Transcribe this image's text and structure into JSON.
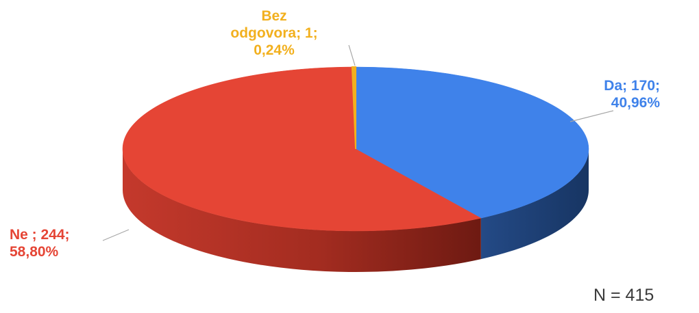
{
  "chart_data": {
    "type": "pie",
    "variant": "3d",
    "slices": [
      {
        "name": "Da",
        "value": 170,
        "percent": "40,96%",
        "color": "#3f82ea",
        "side_color": "#1f3f73",
        "label_lines": [
          "Da; 170;",
          "40,96%"
        ]
      },
      {
        "name": "Ne",
        "value": 244,
        "percent": "58,80%",
        "color": "#e54535",
        "side_color": "#9a2a1f",
        "label_lines": [
          "Ne ; 244;",
          "58,80%"
        ]
      },
      {
        "name": "Bez odgovora",
        "value": 1,
        "percent": "0,24%",
        "color": "#f2b01e",
        "side_color": "#b07f10",
        "label_lines": [
          "Bez",
          "odgovora; 1;",
          "0,24%"
        ]
      }
    ],
    "total_label": "N = 415"
  }
}
